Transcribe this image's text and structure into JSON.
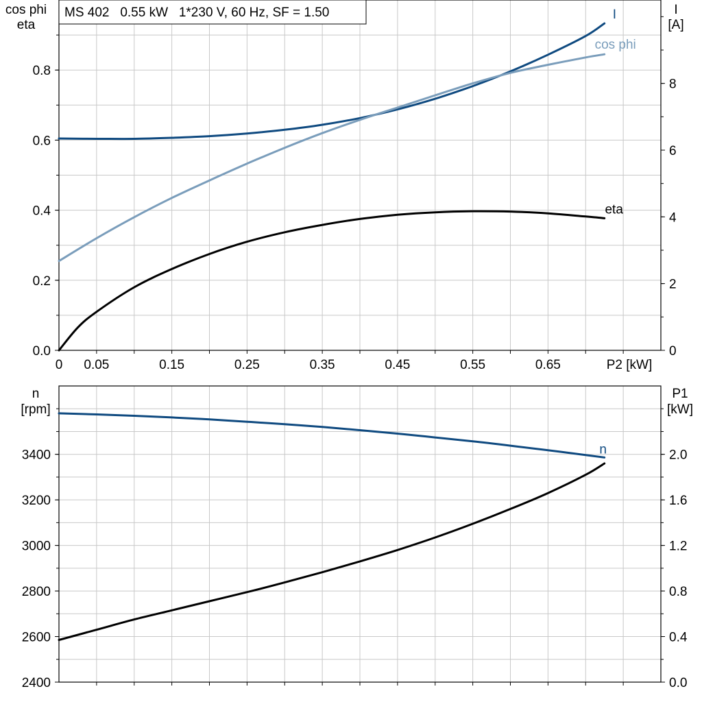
{
  "title": "MS 402   0.55 kW   1*230 V, 60 Hz, SF = 1.50",
  "colors": {
    "I": "#0f4a80",
    "cos_phi": "#7a9dbb",
    "eta": "#000000",
    "n": "#0f4a80",
    "P1": "#000000",
    "grid": "#c8c8c8"
  },
  "chart_data": [
    {
      "type": "line",
      "xlabel": "P2 [kW]",
      "xlim": [
        0,
        0.8
      ],
      "x_tick_labels": [
        "0",
        "0.05",
        "0.15",
        "0.25",
        "0.35",
        "0.45",
        "0.55",
        "0.65"
      ],
      "left_axis": {
        "title_lines": [
          "cos phi",
          "eta"
        ],
        "ylim": [
          0,
          1.0
        ],
        "tick_labels": [
          "0.0",
          "0.2",
          "0.4",
          "0.6",
          "0.8"
        ]
      },
      "right_axis": {
        "title_lines": [
          "I",
          "[A]"
        ],
        "ylim": [
          0,
          10.5
        ],
        "tick_labels": [
          "0",
          "2",
          "4",
          "6",
          "8"
        ]
      },
      "grid": true,
      "series": [
        {
          "name": "I",
          "axis": "right",
          "label": "I",
          "x": [
            0,
            0.05,
            0.1,
            0.15,
            0.2,
            0.25,
            0.3,
            0.35,
            0.4,
            0.45,
            0.5,
            0.55,
            0.6,
            0.65,
            0.7,
            0.725
          ],
          "y": [
            6.35,
            6.34,
            6.34,
            6.37,
            6.42,
            6.5,
            6.61,
            6.76,
            6.96,
            7.22,
            7.54,
            7.92,
            8.36,
            8.86,
            9.42,
            9.8
          ]
        },
        {
          "name": "cos phi",
          "axis": "left",
          "label": "cos phi",
          "x": [
            0,
            0.05,
            0.1,
            0.15,
            0.2,
            0.25,
            0.3,
            0.35,
            0.4,
            0.45,
            0.5,
            0.55,
            0.6,
            0.65,
            0.7,
            0.725
          ],
          "y": [
            0.255,
            0.32,
            0.38,
            0.435,
            0.485,
            0.533,
            0.578,
            0.62,
            0.658,
            0.693,
            0.728,
            0.762,
            0.792,
            0.815,
            0.836,
            0.845
          ]
        },
        {
          "name": "eta",
          "axis": "left",
          "label": "eta",
          "x": [
            0,
            0.025,
            0.05,
            0.1,
            0.15,
            0.2,
            0.25,
            0.3,
            0.35,
            0.4,
            0.45,
            0.5,
            0.55,
            0.6,
            0.65,
            0.7,
            0.725
          ],
          "y": [
            0.0,
            0.065,
            0.11,
            0.18,
            0.232,
            0.275,
            0.31,
            0.337,
            0.358,
            0.375,
            0.387,
            0.394,
            0.397,
            0.396,
            0.391,
            0.382,
            0.377
          ]
        }
      ]
    },
    {
      "type": "line",
      "xlim": [
        0,
        0.8
      ],
      "left_axis": {
        "title_lines": [
          "n",
          "[rpm]"
        ],
        "ylim": [
          2400,
          3700
        ],
        "tick_labels": [
          "2400",
          "2600",
          "2800",
          "3000",
          "3200",
          "3400"
        ]
      },
      "right_axis": {
        "title_lines": [
          "P1",
          "[kW]"
        ],
        "ylim": [
          0,
          2.6
        ],
        "tick_labels": [
          "0.0",
          "0.4",
          "0.8",
          "1.2",
          "1.6",
          "2.0"
        ]
      },
      "grid": true,
      "series": [
        {
          "name": "n",
          "axis": "left",
          "label": "n",
          "x": [
            0,
            0.05,
            0.1,
            0.15,
            0.2,
            0.25,
            0.3,
            0.35,
            0.4,
            0.45,
            0.5,
            0.55,
            0.6,
            0.65,
            0.7,
            0.725
          ],
          "y": [
            3580,
            3575,
            3569,
            3562,
            3553,
            3543,
            3532,
            3520,
            3506,
            3491,
            3474,
            3457,
            3438,
            3418,
            3397,
            3386
          ]
        },
        {
          "name": "P1",
          "axis": "right",
          "label": "",
          "x": [
            0,
            0.05,
            0.1,
            0.15,
            0.2,
            0.25,
            0.3,
            0.35,
            0.4,
            0.45,
            0.5,
            0.55,
            0.6,
            0.65,
            0.7,
            0.725
          ],
          "y": [
            0.37,
            0.46,
            0.55,
            0.63,
            0.71,
            0.79,
            0.875,
            0.965,
            1.06,
            1.16,
            1.27,
            1.39,
            1.52,
            1.66,
            1.82,
            1.92
          ]
        }
      ]
    }
  ]
}
